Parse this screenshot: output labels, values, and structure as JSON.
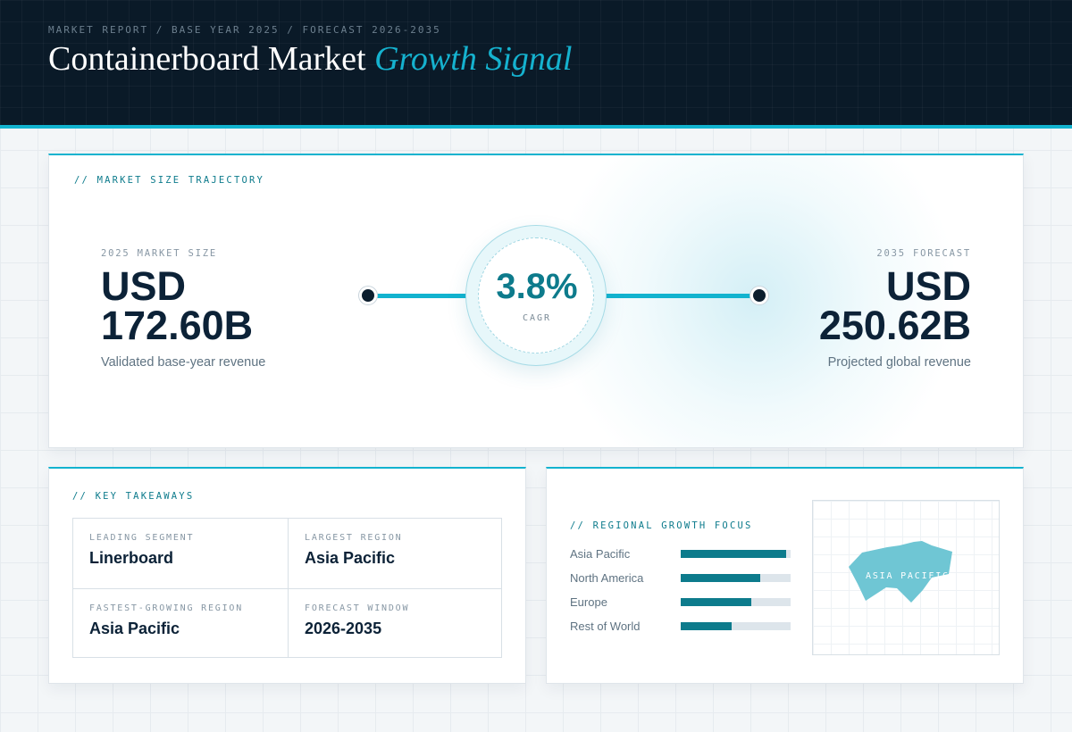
{
  "header": {
    "breadcrumb": "MARKET REPORT / BASE YEAR 2025 / FORECAST 2026-2035",
    "title_main": "Containerboard Market",
    "title_accent": "Growth Signal"
  },
  "trajectory": {
    "section_label": "// MARKET SIZE TRAJECTORY",
    "start": {
      "caption": "2025 MARKET SIZE",
      "currency": "USD",
      "value": "172.60B",
      "description": "Validated base-year revenue"
    },
    "cagr": {
      "value": "3.8%",
      "label": "CAGR"
    },
    "end": {
      "caption": "2035 FORECAST",
      "currency": "USD",
      "value": "250.62B",
      "description": "Projected global revenue"
    }
  },
  "takeaways": {
    "section_label": "// KEY TAKEAWAYS",
    "items": [
      {
        "label": "LEADING SEGMENT",
        "value": "Linerboard"
      },
      {
        "label": "LARGEST REGION",
        "value": "Asia Pacific"
      },
      {
        "label": "FASTEST-GROWING REGION",
        "value": "Asia Pacific"
      },
      {
        "label": "FORECAST WINDOW",
        "value": "2026-2035"
      }
    ]
  },
  "regional": {
    "section_label": "// REGIONAL GROWTH FOCUS",
    "regions": [
      {
        "name": "Asia Pacific",
        "share": 0.96
      },
      {
        "name": "North America",
        "share": 0.72
      },
      {
        "name": "Europe",
        "share": 0.64
      },
      {
        "name": "Rest of World",
        "share": 0.46
      }
    ],
    "map_label": "ASIA PACIFIC",
    "map_highlight_color": "#6fc6d4"
  },
  "colors": {
    "accent": "#12b3cf",
    "teal": "#0d7b8c",
    "navy": "#0a1a28"
  }
}
